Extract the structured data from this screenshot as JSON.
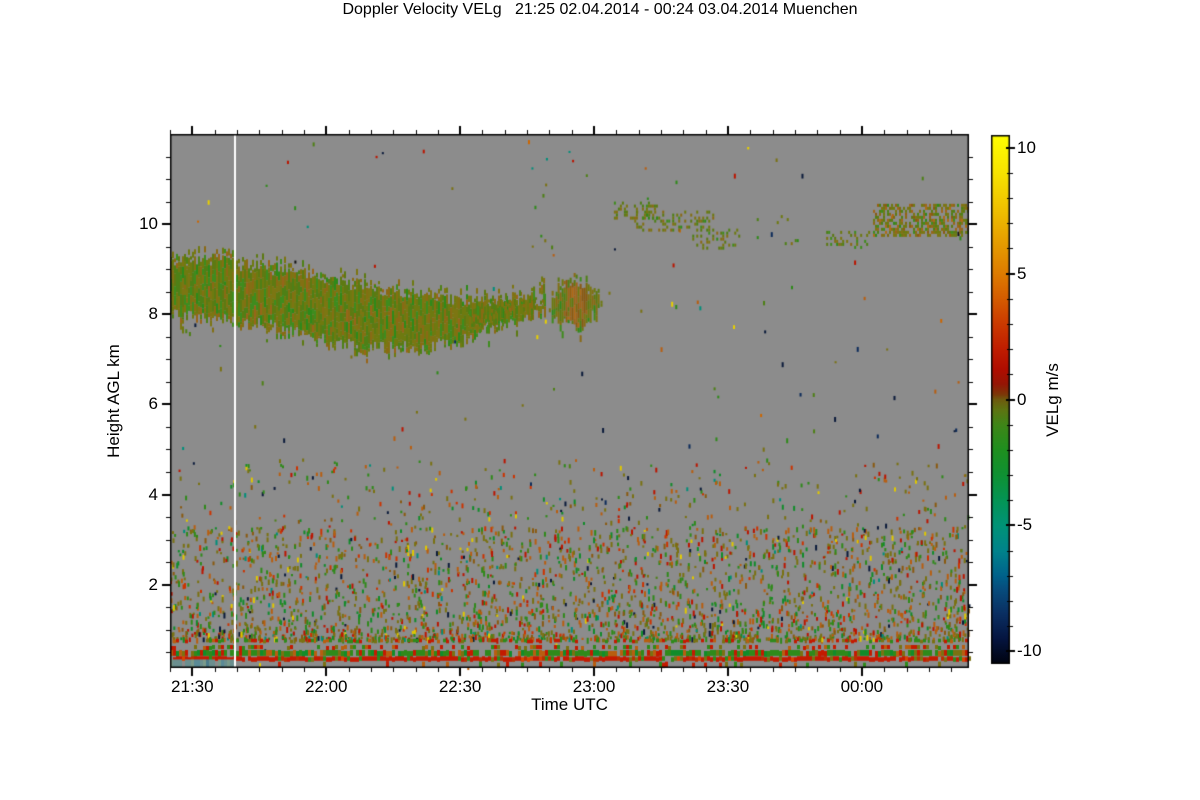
{
  "figure": {
    "title": "Doppler Velocity VELg   21:25 02.04.2014 - 00:24 03.04.2014 Muenchen",
    "xlabel": "Time UTC",
    "ylabel": "Height AGL km",
    "colorbar_label": "VELg m/s"
  },
  "chart_data": {
    "type": "heatmap",
    "title": "Doppler Velocity VELg 21:25 02.04.2014 - 00:24 03.04.2014 Muenchen",
    "time_period": "21:25 02.04.2014 - 00:24 03.04.2014",
    "station": "Muenchen",
    "xlabel": "Time UTC",
    "ylabel": "Height AGL km",
    "x_tick_labels": [
      "21:30",
      "22:00",
      "22:30",
      "23:00",
      "23:30",
      "00:00"
    ],
    "x_tick_minutes": [
      5,
      35,
      65,
      95,
      125,
      155
    ],
    "x_total_minutes": 179,
    "x_minor_step_minutes": 5,
    "y_tick_labels": [
      "2",
      "4",
      "6",
      "8",
      "10"
    ],
    "y_ticks_km": [
      2,
      4,
      6,
      8,
      10
    ],
    "y_minor_step_km": 0.5,
    "y_range_km": [
      0.15,
      12.0
    ],
    "grid": false,
    "no_data_color": "#8c8c8c",
    "colorbar": {
      "label": "VELg m/s",
      "tick_labels": [
        "10",
        "5",
        "0",
        "-5",
        "-10"
      ],
      "tick_values": [
        10,
        5,
        0,
        -5,
        -10
      ],
      "minor_step": 1,
      "range": [
        -10.5,
        10.5
      ],
      "stops": [
        [
          10.5,
          "#ffff00"
        ],
        [
          9,
          "#f7e400"
        ],
        [
          7.5,
          "#eebf00"
        ],
        [
          6,
          "#e49700"
        ],
        [
          5,
          "#de7c00"
        ],
        [
          4,
          "#d55c00"
        ],
        [
          3,
          "#cb3a00"
        ],
        [
          2,
          "#c01d00"
        ],
        [
          1.2,
          "#b00d00"
        ],
        [
          0.6,
          "#951605"
        ],
        [
          0.2,
          "#7c3808"
        ],
        [
          0,
          "#6e5a0e"
        ],
        [
          -0.4,
          "#5e7412"
        ],
        [
          -1,
          "#3f8618"
        ],
        [
          -2,
          "#1f8f1f"
        ],
        [
          -3,
          "#0f9133"
        ],
        [
          -4,
          "#049455"
        ],
        [
          -5,
          "#009377"
        ],
        [
          -6,
          "#00838b"
        ],
        [
          -7,
          "#00628b"
        ],
        [
          -7.5,
          "#074e7e"
        ],
        [
          -8.5,
          "#0a2f62"
        ],
        [
          -9.5,
          "#051540"
        ],
        [
          -10.5,
          "#00030f"
        ]
      ]
    },
    "features": {
      "data_gap": {
        "t_min": 14.6,
        "time_utc": "21:40",
        "color": "#ffffff"
      },
      "cloud_main_band": {
        "profile": [
          [
            0,
            9.15,
            8.0
          ],
          [
            8,
            9.2,
            8.0
          ],
          [
            16,
            9.05,
            7.95
          ],
          [
            24,
            8.95,
            7.75
          ],
          [
            32,
            8.8,
            7.55
          ],
          [
            40,
            8.65,
            7.4
          ],
          [
            48,
            8.5,
            7.3
          ],
          [
            56,
            8.4,
            7.3
          ],
          [
            62,
            8.3,
            7.45
          ],
          [
            68,
            8.25,
            7.62
          ],
          [
            74,
            8.3,
            7.85
          ],
          [
            80,
            8.3,
            8.02
          ],
          [
            84,
            8.28,
            8.12
          ]
        ]
      },
      "cloud_hook_wisp": {
        "profile": [
          [
            67,
            8.0,
            7.8
          ],
          [
            73,
            8.15,
            7.97
          ],
          [
            79,
            8.35,
            8.22
          ],
          [
            84,
            8.55,
            8.42
          ]
        ],
        "skip": 0.3
      },
      "cloud_detached": {
        "profile": [
          [
            85.5,
            8.3,
            8.1
          ],
          [
            87,
            8.55,
            7.95
          ],
          [
            89,
            8.62,
            7.85
          ],
          [
            92,
            8.6,
            7.82
          ],
          [
            94,
            8.5,
            7.95
          ],
          [
            96,
            8.35,
            8.18
          ]
        ],
        "orange_core_t": [
          88.5,
          93.5
        ]
      },
      "upper_clusters": [
        {
          "t": [
            99,
            109
          ],
          "h": [
            10.15,
            10.5
          ],
          "density": 0.3,
          "orange": 0
        },
        {
          "t": [
            104,
            122
          ],
          "h": [
            9.85,
            10.3
          ],
          "density": 0.3,
          "orange": 0
        },
        {
          "t": [
            117,
            128
          ],
          "h": [
            9.5,
            9.9
          ],
          "density": 0.22,
          "orange": 0
        },
        {
          "t": [
            131,
            141
          ],
          "h": [
            9.6,
            10.2
          ],
          "density": 0.05,
          "orange": 0
        },
        {
          "t": [
            147,
            157
          ],
          "h": [
            9.5,
            9.85
          ],
          "density": 0.22,
          "orange": 0
        },
        {
          "t": [
            157.5,
            179
          ],
          "h": [
            9.75,
            10.45
          ],
          "density": 0.55,
          "orange": 0.25
        },
        {
          "t": [
            96,
            99
          ],
          "h": [
            8.2,
            8.5
          ],
          "density": 0.15,
          "orange": 0
        }
      ],
      "surface_bands": [
        {
          "h": [
            0.72,
            0.8
          ],
          "coverage": 0.5,
          "palette": "band_mix"
        },
        {
          "h": [
            0.57,
            0.66
          ],
          "coverage": 0.4,
          "palette": "band_mix"
        },
        {
          "h": [
            0.42,
            0.55
          ],
          "coverage": 0.92,
          "palette": "band_green"
        },
        {
          "h": [
            0.31,
            0.41
          ],
          "coverage": 0.96,
          "palette": "band_red"
        },
        {
          "h": [
            0.17,
            0.29
          ],
          "coverage": 0.1,
          "palette": "band_mix"
        }
      ],
      "teal_patch": {
        "t": [
          0,
          14.4
        ],
        "h": [
          0.17,
          0.34
        ],
        "coverage": 0.95,
        "palette": "teal_patch"
      },
      "noise": {
        "sparse_count": 170,
        "low_count": 2600,
        "mid_count": 420
      }
    },
    "palettes": {
      "cloud": [
        [
          "#6e7a10",
          22
        ],
        [
          "#5d7a12",
          16
        ],
        [
          "#7c7612",
          14
        ],
        [
          "#4e8016",
          12
        ],
        [
          "#3f8c1e",
          10
        ],
        [
          "#837013",
          10
        ],
        [
          "#8a6a14",
          8
        ],
        [
          "#2f8a1a",
          5
        ],
        [
          "#97651a",
          3
        ]
      ],
      "cloud_orange": [
        [
          "#a0651a",
          30
        ],
        [
          "#8a5a12",
          25
        ],
        [
          "#b06a15",
          20
        ],
        [
          "#96600f",
          15
        ],
        [
          "#7c6a10",
          10
        ]
      ],
      "noise_low": [
        [
          "#7a7212",
          26
        ],
        [
          "#2f8a1a",
          18
        ],
        [
          "#118c2a",
          8
        ],
        [
          "#b85e10",
          16
        ],
        [
          "#bb1500",
          10
        ],
        [
          "#8a5a10",
          8
        ],
        [
          "#0a1a3a",
          3
        ],
        [
          "#008f7a",
          3
        ],
        [
          "#e0c800",
          3
        ],
        [
          "#cc3300",
          5
        ]
      ],
      "noise_any": [
        [
          "#7a7212",
          20
        ],
        [
          "#2f8a1a",
          15
        ],
        [
          "#b85e10",
          12
        ],
        [
          "#bb1500",
          10
        ],
        [
          "#0a1a3a",
          8
        ],
        [
          "#008f7a",
          6
        ],
        [
          "#e8d000",
          6
        ],
        [
          "#cc6600",
          5
        ],
        [
          "#4e8016",
          10
        ],
        [
          "#0b2a5a",
          4
        ],
        [
          "#111111",
          4
        ]
      ],
      "band_red": [
        [
          "#c41a00",
          70
        ],
        [
          "#b83000",
          10
        ],
        [
          "#2f8a1a",
          8
        ],
        [
          "#7a7212",
          7
        ],
        [
          "#d84400",
          5
        ]
      ],
      "band_green": [
        [
          "#2f8a1a",
          38
        ],
        [
          "#118c2a",
          15
        ],
        [
          "#c41a00",
          20
        ],
        [
          "#7a7212",
          15
        ],
        [
          "#b85e10",
          12
        ]
      ],
      "band_mix": [
        [
          "#c41a00",
          38
        ],
        [
          "#2f8a1a",
          28
        ],
        [
          "#7a7212",
          20
        ],
        [
          "#b85e10",
          14
        ]
      ],
      "teal_patch": [
        [
          "#6b8f8f",
          50
        ],
        [
          "#5a8a96",
          25
        ],
        [
          "#7a9a8a",
          15
        ],
        [
          "#4a7a8a",
          10
        ]
      ]
    }
  }
}
